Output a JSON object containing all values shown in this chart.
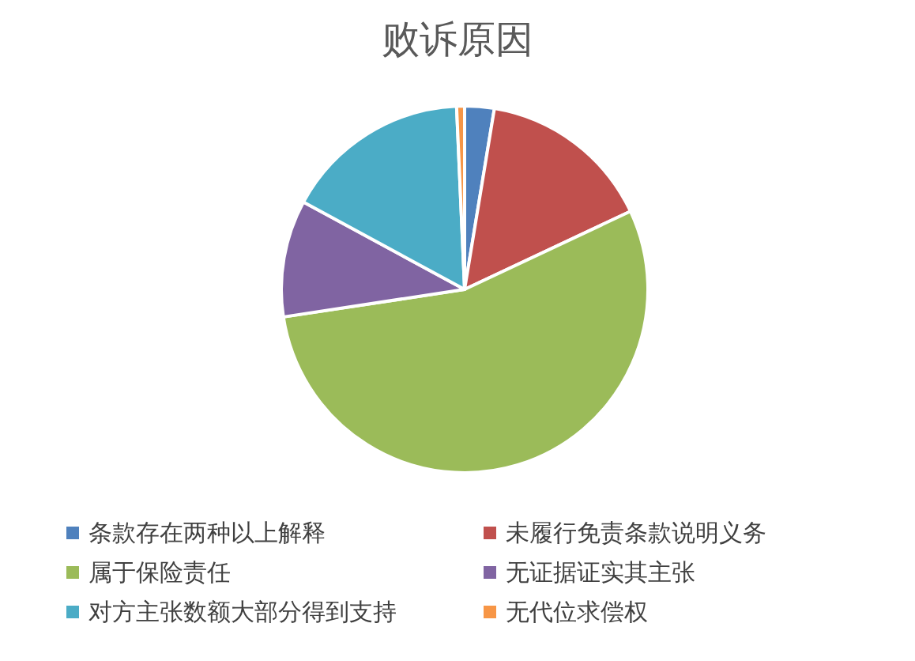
{
  "chart_data": {
    "type": "pie",
    "title": "败诉原因",
    "categories": [
      "条款存在两种以上解释",
      "未履行免责条款说明义务",
      "属于保险责任",
      "无证据证实其主张",
      "对方主张数额大部分得到支持",
      "无代位求偿权"
    ],
    "values": [
      2.6,
      15.4,
      54.6,
      10.3,
      16.4,
      0.7
    ],
    "colors": [
      "#4f81bd",
      "#c0504d",
      "#9bbb59",
      "#8064a2",
      "#4bacc6",
      "#f79646"
    ],
    "legend": "bottom"
  }
}
